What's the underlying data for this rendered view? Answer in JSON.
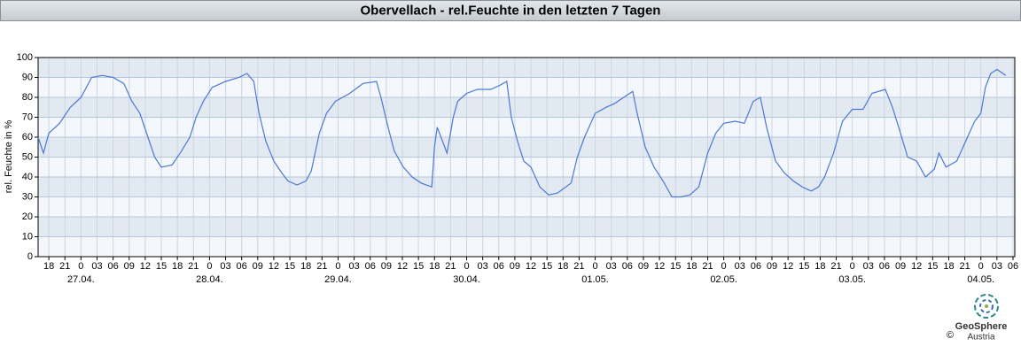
{
  "chart_data": {
    "type": "line",
    "title": "Obervellach - rel.Feuchte in den letzten 7 Tagen",
    "ylabel": "rel. Feuchte in %",
    "color": "#4a78d6",
    "grid": true,
    "ylim": [
      0,
      100
    ],
    "yticks": [
      0,
      10,
      20,
      30,
      40,
      50,
      60,
      70,
      80,
      90,
      100
    ],
    "xlim": [
      "26.04. 16:00",
      "04.05. 06:20"
    ],
    "xticks": [
      {
        "value": "26.04. 18:00",
        "label": "18"
      },
      {
        "value": "26.04. 21:00",
        "label": "21"
      },
      {
        "value": "27.04. 00:00",
        "label": "0"
      },
      {
        "value": "27.04. 03:00",
        "label": "03"
      },
      {
        "value": "27.04. 06:00",
        "label": "06"
      },
      {
        "value": "27.04. 09:00",
        "label": "09"
      },
      {
        "value": "27.04. 12:00",
        "label": "12"
      },
      {
        "value": "27.04. 15:00",
        "label": "15"
      },
      {
        "value": "27.04. 18:00",
        "label": "18"
      },
      {
        "value": "27.04. 21:00",
        "label": "21"
      },
      {
        "value": "28.04. 00:00",
        "label": "0"
      },
      {
        "value": "28.04. 03:00",
        "label": "03"
      },
      {
        "value": "28.04. 06:00",
        "label": "06"
      },
      {
        "value": "28.04. 09:00",
        "label": "09"
      },
      {
        "value": "28.04. 12:00",
        "label": "12"
      },
      {
        "value": "28.04. 15:00",
        "label": "15"
      },
      {
        "value": "28.04. 18:00",
        "label": "18"
      },
      {
        "value": "28.04. 21:00",
        "label": "21"
      },
      {
        "value": "29.04. 00:00",
        "label": "0"
      },
      {
        "value": "29.04. 03:00",
        "label": "03"
      },
      {
        "value": "29.04. 06:00",
        "label": "06"
      },
      {
        "value": "29.04. 09:00",
        "label": "09"
      },
      {
        "value": "29.04. 12:00",
        "label": "12"
      },
      {
        "value": "29.04. 15:00",
        "label": "15"
      },
      {
        "value": "29.04. 18:00",
        "label": "18"
      },
      {
        "value": "29.04. 21:00",
        "label": "21"
      },
      {
        "value": "30.04. 00:00",
        "label": "0"
      },
      {
        "value": "30.04. 03:00",
        "label": "03"
      },
      {
        "value": "30.04. 06:00",
        "label": "06"
      },
      {
        "value": "30.04. 09:00",
        "label": "09"
      },
      {
        "value": "30.04. 12:00",
        "label": "12"
      },
      {
        "value": "30.04. 15:00",
        "label": "15"
      },
      {
        "value": "30.04. 18:00",
        "label": "18"
      },
      {
        "value": "30.04. 21:00",
        "label": "21"
      },
      {
        "value": "01.05. 00:00",
        "label": "0"
      },
      {
        "value": "01.05. 03:00",
        "label": "03"
      },
      {
        "value": "01.05. 06:00",
        "label": "06"
      },
      {
        "value": "01.05. 09:00",
        "label": "09"
      },
      {
        "value": "01.05. 12:00",
        "label": "12"
      },
      {
        "value": "01.05. 15:00",
        "label": "15"
      },
      {
        "value": "01.05. 18:00",
        "label": "18"
      },
      {
        "value": "01.05. 21:00",
        "label": "21"
      },
      {
        "value": "02.05. 00:00",
        "label": "0"
      },
      {
        "value": "02.05. 03:00",
        "label": "03"
      },
      {
        "value": "02.05. 06:00",
        "label": "06"
      },
      {
        "value": "02.05. 09:00",
        "label": "09"
      },
      {
        "value": "02.05. 12:00",
        "label": "12"
      },
      {
        "value": "02.05. 15:00",
        "label": "15"
      },
      {
        "value": "02.05. 18:00",
        "label": "18"
      },
      {
        "value": "02.05. 21:00",
        "label": "21"
      },
      {
        "value": "03.05. 00:00",
        "label": "0"
      },
      {
        "value": "03.05. 03:00",
        "label": "03"
      },
      {
        "value": "03.05. 06:00",
        "label": "06"
      },
      {
        "value": "03.05. 09:00",
        "label": "09"
      },
      {
        "value": "03.05. 12:00",
        "label": "12"
      },
      {
        "value": "03.05. 15:00",
        "label": "15"
      },
      {
        "value": "03.05. 18:00",
        "label": "18"
      },
      {
        "value": "03.05. 21:00",
        "label": "21"
      },
      {
        "value": "04.05. 00:00",
        "label": "0"
      },
      {
        "value": "04.05. 03:00",
        "label": "03"
      },
      {
        "value": "04.05. 06:00",
        "label": "06"
      }
    ],
    "date_labels": [
      {
        "value": "27.04. 00:00",
        "label": "27.04."
      },
      {
        "value": "28.04. 00:00",
        "label": "28.04."
      },
      {
        "value": "29.04. 00:00",
        "label": "29.04."
      },
      {
        "value": "30.04. 00:00",
        "label": "30.04."
      },
      {
        "value": "01.05. 00:00",
        "label": "01.05."
      },
      {
        "value": "02.05. 00:00",
        "label": "02.05."
      },
      {
        "value": "03.05. 00:00",
        "label": "03.05."
      },
      {
        "value": "04.05. 00:00",
        "label": "04.05."
      }
    ],
    "x": [
      "26.04. 16:00",
      "26.04. 17:00",
      "26.04. 18:00",
      "26.04. 20:00",
      "26.04. 22:00",
      "27.04. 00:00",
      "27.04. 02:00",
      "27.04. 04:00",
      "27.04. 06:00",
      "27.04. 08:00",
      "27.04. 09:30",
      "27.04. 11:00",
      "27.04. 12:00",
      "27.04. 13:45",
      "27.04. 15:00",
      "27.04. 17:00",
      "27.04. 18:45",
      "27.04. 20:20",
      "27.04. 21:30",
      "27.04. 22:50",
      "28.04. 00:30",
      "28.04. 03:00",
      "28.04. 05:30",
      "28.04. 07:00",
      "28.04. 08:15",
      "28.04. 09:15",
      "28.04. 10:30",
      "28.04. 12:00",
      "28.04. 13:30",
      "28.04. 14:40",
      "28.04. 16:20",
      "28.04. 18:00",
      "28.04. 19:00",
      "28.04. 20:30",
      "28.04. 21:50",
      "28.04. 23:30",
      "29.04. 02:10",
      "29.04. 04:40",
      "29.04. 07:10",
      "29.04. 08:00",
      "29.04. 09:20",
      "29.04. 10:30",
      "29.04. 12:10",
      "29.04. 13:50",
      "29.04. 15:30",
      "29.04. 17:30",
      "29.04. 18:00",
      "29.04. 18:30",
      "29.04. 19:30",
      "29.04. 20:20",
      "29.04. 21:30",
      "29.04. 22:20",
      "30.04. 00:00",
      "30.04. 02:00",
      "30.04. 04:30",
      "30.04. 06:10",
      "30.04. 07:30",
      "30.04. 08:20",
      "30.04. 09:30",
      "30.04. 10:40",
      "30.04. 12:00",
      "30.04. 13:40",
      "30.04. 15:20",
      "30.04. 17:00",
      "30.04. 19:30",
      "30.04. 20:40",
      "30.04. 22:00",
      "01.05. 00:00",
      "01.05. 02:00",
      "01.05. 03:40",
      "01.05. 05:20",
      "01.05. 07:00",
      "01.05. 07:50",
      "01.05. 09:20",
      "01.05. 11:00",
      "01.05. 12:40",
      "01.05. 14:20",
      "01.05. 16:00",
      "01.05. 17:40",
      "01.05. 19:20",
      "01.05. 21:00",
      "01.05. 22:30",
      "02.05. 00:00",
      "02.05. 02:10",
      "02.05. 03:50",
      "02.05. 05:30",
      "02.05. 06:50",
      "02.05. 08:00",
      "02.05. 09:40",
      "02.05. 11:20",
      "02.05. 13:00",
      "02.05. 14:40",
      "02.05. 16:20",
      "02.05. 17:40",
      "02.05. 18:50",
      "02.05. 20:30",
      "02.05. 22:10",
      "03.05. 00:00",
      "03.05. 02:00",
      "03.05. 03:40",
      "03.05. 06:10",
      "03.05. 07:30",
      "03.05. 08:40",
      "03.05. 10:20",
      "03.05. 12:00",
      "03.05. 13:40",
      "03.05. 15:20",
      "03.05. 16:10",
      "03.05. 17:30",
      "03.05. 19:30",
      "03.05. 21:10",
      "03.05. 22:50",
      "04.05. 00:00",
      "04.05. 00:50",
      "04.05. 01:50",
      "04.05. 03:00",
      "04.05. 04:40"
    ],
    "values": [
      60,
      52,
      62,
      67,
      75,
      80,
      90,
      91,
      90,
      87,
      78,
      72,
      64,
      50,
      45,
      46,
      53,
      60,
      70,
      78,
      85,
      88,
      90,
      92,
      88,
      72,
      58,
      48,
      42,
      38,
      36,
      38,
      43,
      62,
      72,
      78,
      82,
      87,
      88,
      80,
      65,
      53,
      45,
      40,
      37,
      35,
      55,
      65,
      58,
      52,
      70,
      78,
      82,
      84,
      84,
      86,
      88,
      70,
      58,
      48,
      45,
      35,
      31,
      32,
      37,
      50,
      60,
      72,
      75,
      77,
      80,
      83,
      72,
      55,
      45,
      38,
      30,
      30,
      31,
      35,
      52,
      62,
      67,
      68,
      67,
      78,
      80,
      65,
      48,
      42,
      38,
      35,
      33,
      35,
      40,
      52,
      68,
      74,
      74,
      82,
      84,
      75,
      65,
      50,
      48,
      40,
      44,
      52,
      45,
      48,
      58,
      68,
      72,
      85,
      92,
      94,
      91
    ]
  },
  "logo": {
    "name": "GeoSphere",
    "sub": "Austria",
    "copyright": "©"
  }
}
